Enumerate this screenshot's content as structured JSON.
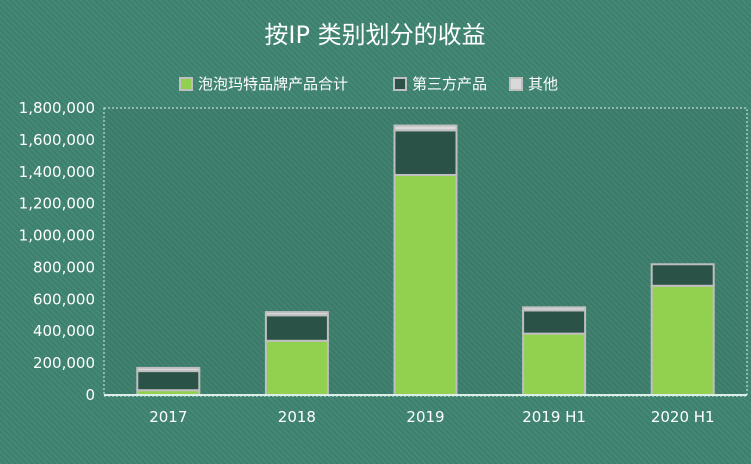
{
  "chart_data": {
    "type": "bar",
    "stacked": true,
    "title": "按IP 类别划分的收益",
    "categories": [
      "2017",
      "2018",
      "2019",
      "2019 H1",
      "2020 H1"
    ],
    "series": [
      {
        "name": "泡泡玛特品牌产品合计",
        "color": "#92d050",
        "values": [
          30000,
          340000,
          1380000,
          385000,
          685000
        ]
      },
      {
        "name": "第三方产品",
        "color": "#2a5247",
        "values": [
          120000,
          160000,
          280000,
          145000,
          135000
        ]
      },
      {
        "name": "其他",
        "color": "#d9d9d9",
        "values": [
          20000,
          20000,
          30000,
          20000,
          0
        ]
      }
    ],
    "ylim": [
      0,
      1800000
    ],
    "yticks": [
      "0",
      "200,000",
      "400,000",
      "600,000",
      "800,000",
      "1,000,000",
      "1,200,000",
      "1,400,000",
      "1,600,000",
      "1,800,000"
    ],
    "grid": false,
    "legend_position": "top"
  }
}
